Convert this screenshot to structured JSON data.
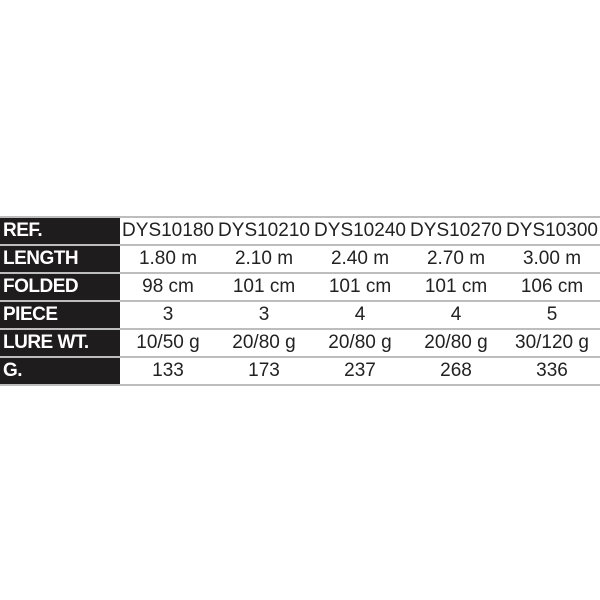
{
  "table": {
    "rows": [
      {
        "label": "REF.",
        "values": [
          "DYS10180",
          "DYS10210",
          "DYS10240",
          "DYS10270",
          "DYS10300"
        ]
      },
      {
        "label": "LENGTH",
        "values": [
          "1.80 m",
          "2.10 m",
          "2.40 m",
          "2.70 m",
          "3.00 m"
        ]
      },
      {
        "label": "FOLDED",
        "values": [
          "98 cm",
          "101 cm",
          "101 cm",
          "101 cm",
          "106 cm"
        ]
      },
      {
        "label": "PIECE",
        "values": [
          "3",
          "3",
          "4",
          "4",
          "5"
        ]
      },
      {
        "label": "LURE WT.",
        "values": [
          "10/50 g",
          "20/80 g",
          "20/80 g",
          "20/80 g",
          "30/120 g"
        ]
      },
      {
        "label": "G.",
        "values": [
          "133",
          "173",
          "237",
          "268",
          "336"
        ]
      }
    ]
  }
}
